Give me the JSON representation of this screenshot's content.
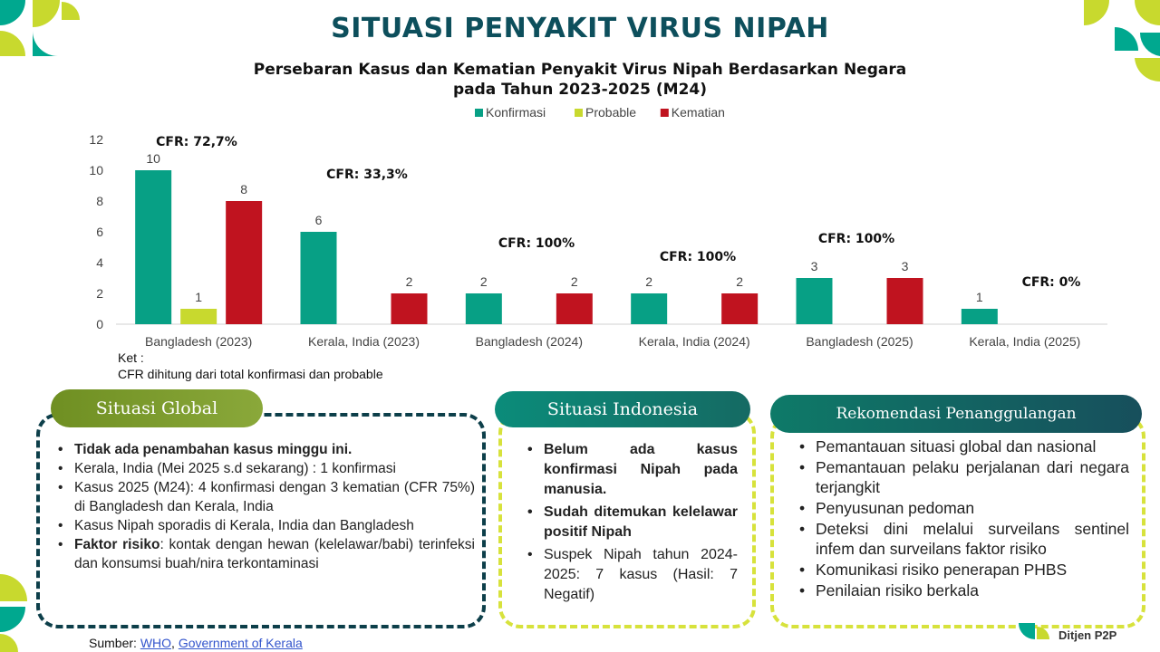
{
  "title": "SITUASI PENYAKIT VIRUS NIPAH",
  "subtitle_line1": "Persebaran Kasus dan Kematian Penyakit Virus Nipah Berdasarkan Negara",
  "subtitle_line2": "pada Tahun 2023-2025 (M24)",
  "chart_data": {
    "type": "bar",
    "categories": [
      "Bangladesh (2023)",
      "Kerala, India (2023)",
      "Bangladesh (2024)",
      "Kerala, India (2024)",
      "Bangladesh (2025)",
      "Kerala, India (2025)"
    ],
    "series": [
      {
        "name": "Konfirmasi",
        "color": "#07a085",
        "values": [
          10,
          6,
          2,
          2,
          3,
          1
        ]
      },
      {
        "name": "Probable",
        "color": "#c8d92e",
        "values": [
          1,
          null,
          null,
          null,
          null,
          null
        ]
      },
      {
        "name": "Kematian",
        "color": "#c0131f",
        "values": [
          8,
          2,
          2,
          2,
          3,
          null
        ]
      }
    ],
    "cfr_labels": [
      "CFR: 72,7%",
      "CFR: 33,3%",
      "CFR: 100%",
      "CFR: 100%",
      "CFR: 100%",
      "CFR: 0%"
    ],
    "y_ticks": [
      0,
      2,
      4,
      6,
      8,
      10,
      12
    ],
    "ylim": [
      0,
      12
    ],
    "legend_position": "top-center",
    "grid": false
  },
  "note_line1": "Ket :",
  "note_line2": "CFR dihitung dari total konfirmasi dan probable",
  "global": {
    "title": "Situasi Global",
    "items": [
      {
        "text": "Tidak ada penambahan kasus minggu ini."
      },
      {
        "text": "Kerala, India (Mei 2025 s.d sekarang) : 1 konfirmasi"
      },
      {
        "text": "Kasus 2025 (M24): 4 konfirmasi dengan 3 kematian (CFR 75%) di Bangladesh dan Kerala, India"
      },
      {
        "text": "Kasus Nipah sporadis di Kerala, India dan Bangladesh"
      },
      {
        "bold": "Faktor risiko",
        "rest": ": kontak dengan hewan (kelelawar/babi) terinfeksi dan konsumsi buah/nira terkontaminasi"
      }
    ]
  },
  "indonesia": {
    "title": "Situasi Indonesia",
    "items": [
      {
        "text": "Belum ada kasus konfirmasi Nipah pada manusia."
      },
      {
        "text": "Sudah ditemukan kelelawar positif Nipah"
      },
      {
        "text": "Suspek Nipah tahun 2024-2025: 7 kasus (Hasil: 7 Negatif)"
      }
    ]
  },
  "rekomendasi": {
    "title": "Rekomendasi Penanggulangan",
    "items": [
      "Pemantauan situasi global dan nasional",
      "Pemantauan pelaku perjalanan dari negara terjangkit",
      "Penyusunan pedoman",
      "Deteksi dini melalui surveilans sentinel infem dan surveilans faktor risiko",
      "Komunikasi risiko penerapan PHBS",
      "Penilaian risiko berkala"
    ]
  },
  "source": {
    "label": "Sumber:",
    "link1": "WHO",
    "sep": ",",
    "link2": "Government of Kerala"
  },
  "brand": "Ditjen P2P",
  "colors": {
    "title": "#0d4f5c",
    "global_header": "#7a9a2a",
    "global_border": "#0d3f4a",
    "indo_header": "#0e7f72",
    "indo_border": "#d7e23c",
    "rek_header": "#0e5e5e",
    "rek_border": "#d7e23c"
  }
}
